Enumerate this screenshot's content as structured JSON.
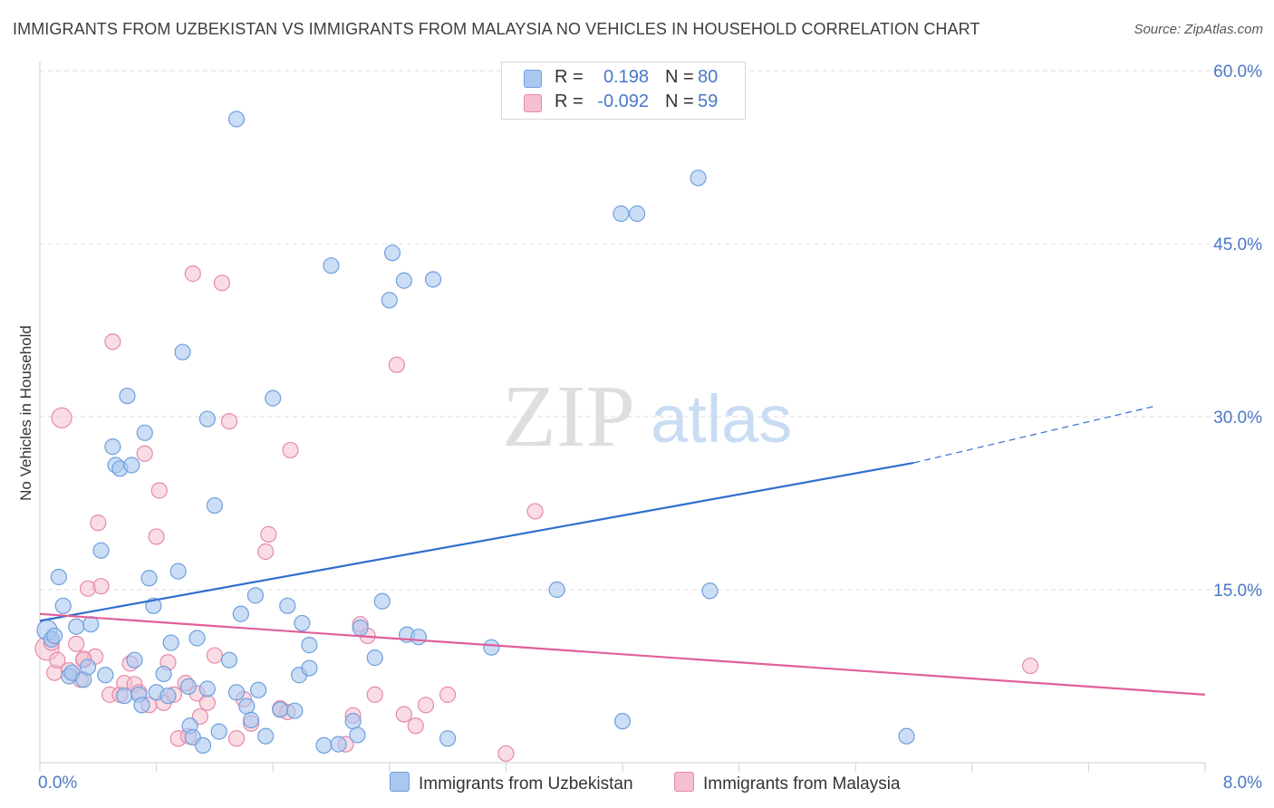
{
  "title": "IMMIGRANTS FROM UZBEKISTAN VS IMMIGRANTS FROM MALAYSIA NO VEHICLES IN HOUSEHOLD CORRELATION CHART",
  "source": "Source: ZipAtlas.com",
  "watermark": {
    "zip": "ZIP",
    "atlas": "atlas"
  },
  "legend": {
    "rows": [
      {
        "r_label": "R =",
        "r_value": "0.198",
        "n_label": "N =",
        "n_value": "80"
      },
      {
        "r_label": "R =",
        "r_value": "-0.092",
        "n_label": "N =",
        "n_value": "59"
      }
    ]
  },
  "bottom_legend": [
    "Immigrants from Uzbekistan",
    "Immigrants from Malaysia"
  ],
  "colors": {
    "blue_fill": "#a9c8f0",
    "blue_stroke": "#6f9fdc",
    "blue_line": "#2f6fcf",
    "pink_fill": "#f6bfd0",
    "pink_stroke": "#e58aa8",
    "pink_line": "#e0609a",
    "tick_text": "#4a78c8",
    "grid": "#dcdcdc"
  },
  "chart_data": {
    "type": "scatter",
    "title": "IMMIGRANTS FROM UZBEKISTAN VS IMMIGRANTS FROM MALAYSIA NO VEHICLES IN HOUSEHOLD CORRELATION CHART",
    "xlabel": "",
    "ylabel": "No Vehicles in Household",
    "xlim": [
      0,
      8
    ],
    "ylim": [
      0,
      60
    ],
    "x_tick_labels": [
      "0.0%",
      "8.0%"
    ],
    "y_ticks": [
      15,
      30,
      45,
      60
    ],
    "y_tick_labels": [
      "15.0%",
      "30.0%",
      "45.0%",
      "60.0%"
    ],
    "grid": true,
    "legend_position": "top-center",
    "series": [
      {
        "name": "Immigrants from Uzbekistan",
        "color": "#a9c8f0",
        "trend": {
          "x": [
            0,
            6.0
          ],
          "y": [
            12.3,
            26.0
          ],
          "dashed_to": [
            7.65,
            30.9
          ]
        },
        "points": [
          [
            0.05,
            11.5
          ],
          [
            0.08,
            10.7
          ],
          [
            0.1,
            11.0
          ],
          [
            0.13,
            16.1
          ],
          [
            0.16,
            13.6
          ],
          [
            0.2,
            7.5
          ],
          [
            0.22,
            7.8
          ],
          [
            0.25,
            11.8
          ],
          [
            0.3,
            7.2
          ],
          [
            0.33,
            8.3
          ],
          [
            0.35,
            12.0
          ],
          [
            0.42,
            18.4
          ],
          [
            0.45,
            7.6
          ],
          [
            0.5,
            27.4
          ],
          [
            0.52,
            25.8
          ],
          [
            0.55,
            25.5
          ],
          [
            0.58,
            5.8
          ],
          [
            0.6,
            31.8
          ],
          [
            0.63,
            25.8
          ],
          [
            0.65,
            8.9
          ],
          [
            0.68,
            5.9
          ],
          [
            0.7,
            5.0
          ],
          [
            0.72,
            28.6
          ],
          [
            0.75,
            16.0
          ],
          [
            0.78,
            13.6
          ],
          [
            0.8,
            6.1
          ],
          [
            0.85,
            7.7
          ],
          [
            0.88,
            5.8
          ],
          [
            0.9,
            10.4
          ],
          [
            0.95,
            16.6
          ],
          [
            0.98,
            35.6
          ],
          [
            1.02,
            6.6
          ],
          [
            1.03,
            3.2
          ],
          [
            1.05,
            2.2
          ],
          [
            1.08,
            10.8
          ],
          [
            1.12,
            1.5
          ],
          [
            1.15,
            6.4
          ],
          [
            1.15,
            29.8
          ],
          [
            1.2,
            22.3
          ],
          [
            1.23,
            2.7
          ],
          [
            1.3,
            8.9
          ],
          [
            1.35,
            55.8
          ],
          [
            1.38,
            12.9
          ],
          [
            1.42,
            4.9
          ],
          [
            1.45,
            3.7
          ],
          [
            1.48,
            14.5
          ],
          [
            1.5,
            6.3
          ],
          [
            1.55,
            2.3
          ],
          [
            1.6,
            31.6
          ],
          [
            1.65,
            4.6
          ],
          [
            1.7,
            13.6
          ],
          [
            1.75,
            4.5
          ],
          [
            1.78,
            7.6
          ],
          [
            1.8,
            12.1
          ],
          [
            1.85,
            8.2
          ],
          [
            1.85,
            10.2
          ],
          [
            1.95,
            1.5
          ],
          [
            2.0,
            43.1
          ],
          [
            2.05,
            1.6
          ],
          [
            2.15,
            3.6
          ],
          [
            2.18,
            2.4
          ],
          [
            2.2,
            11.7
          ],
          [
            2.3,
            9.1
          ],
          [
            2.35,
            14.0
          ],
          [
            2.4,
            40.1
          ],
          [
            2.42,
            44.2
          ],
          [
            2.5,
            41.8
          ],
          [
            2.52,
            11.1
          ],
          [
            2.6,
            10.9
          ],
          [
            2.7,
            41.9
          ],
          [
            2.8,
            2.1
          ],
          [
            3.1,
            10.0
          ],
          [
            3.55,
            15.0
          ],
          [
            3.99,
            47.6
          ],
          [
            4.1,
            47.6
          ],
          [
            4.0,
            3.6
          ],
          [
            4.52,
            50.7
          ],
          [
            4.6,
            14.9
          ],
          [
            5.95,
            2.3
          ],
          [
            1.35,
            6.1
          ]
        ]
      },
      {
        "name": "Immigrants from Malaysia",
        "color": "#f6bfd0",
        "trend": {
          "x": [
            0,
            8.0
          ],
          "y": [
            12.9,
            5.9
          ]
        },
        "points": [
          [
            0.05,
            9.9
          ],
          [
            0.08,
            10.4
          ],
          [
            0.1,
            7.8
          ],
          [
            0.12,
            8.9
          ],
          [
            0.15,
            29.9
          ],
          [
            0.2,
            8.0
          ],
          [
            0.25,
            10.3
          ],
          [
            0.28,
            7.2
          ],
          [
            0.3,
            8.9
          ],
          [
            0.33,
            15.1
          ],
          [
            0.38,
            9.2
          ],
          [
            0.4,
            20.8
          ],
          [
            0.42,
            15.3
          ],
          [
            0.48,
            5.9
          ],
          [
            0.5,
            36.5
          ],
          [
            0.55,
            5.9
          ],
          [
            0.58,
            6.9
          ],
          [
            0.62,
            8.6
          ],
          [
            0.65,
            6.8
          ],
          [
            0.68,
            6.1
          ],
          [
            0.72,
            26.8
          ],
          [
            0.75,
            5.0
          ],
          [
            0.8,
            19.6
          ],
          [
            0.82,
            23.6
          ],
          [
            0.85,
            5.2
          ],
          [
            0.88,
            8.7
          ],
          [
            0.92,
            5.9
          ],
          [
            0.95,
            2.1
          ],
          [
            1.0,
            6.9
          ],
          [
            1.02,
            2.3
          ],
          [
            1.05,
            42.4
          ],
          [
            1.08,
            6.0
          ],
          [
            1.1,
            4.0
          ],
          [
            1.15,
            5.2
          ],
          [
            1.2,
            9.3
          ],
          [
            1.25,
            41.6
          ],
          [
            1.3,
            29.6
          ],
          [
            1.35,
            2.1
          ],
          [
            1.4,
            5.5
          ],
          [
            1.45,
            3.4
          ],
          [
            1.55,
            18.3
          ],
          [
            1.57,
            19.8
          ],
          [
            1.65,
            4.7
          ],
          [
            1.7,
            4.4
          ],
          [
            1.72,
            27.1
          ],
          [
            2.1,
            1.6
          ],
          [
            2.15,
            4.1
          ],
          [
            2.2,
            12.0
          ],
          [
            2.25,
            11.0
          ],
          [
            2.3,
            5.9
          ],
          [
            2.45,
            34.5
          ],
          [
            2.5,
            4.2
          ],
          [
            2.58,
            3.2
          ],
          [
            2.65,
            5.0
          ],
          [
            2.8,
            5.9
          ],
          [
            3.2,
            0.8
          ],
          [
            3.4,
            21.8
          ],
          [
            6.8,
            8.4
          ],
          [
            0.3,
            9.0
          ]
        ]
      }
    ]
  }
}
